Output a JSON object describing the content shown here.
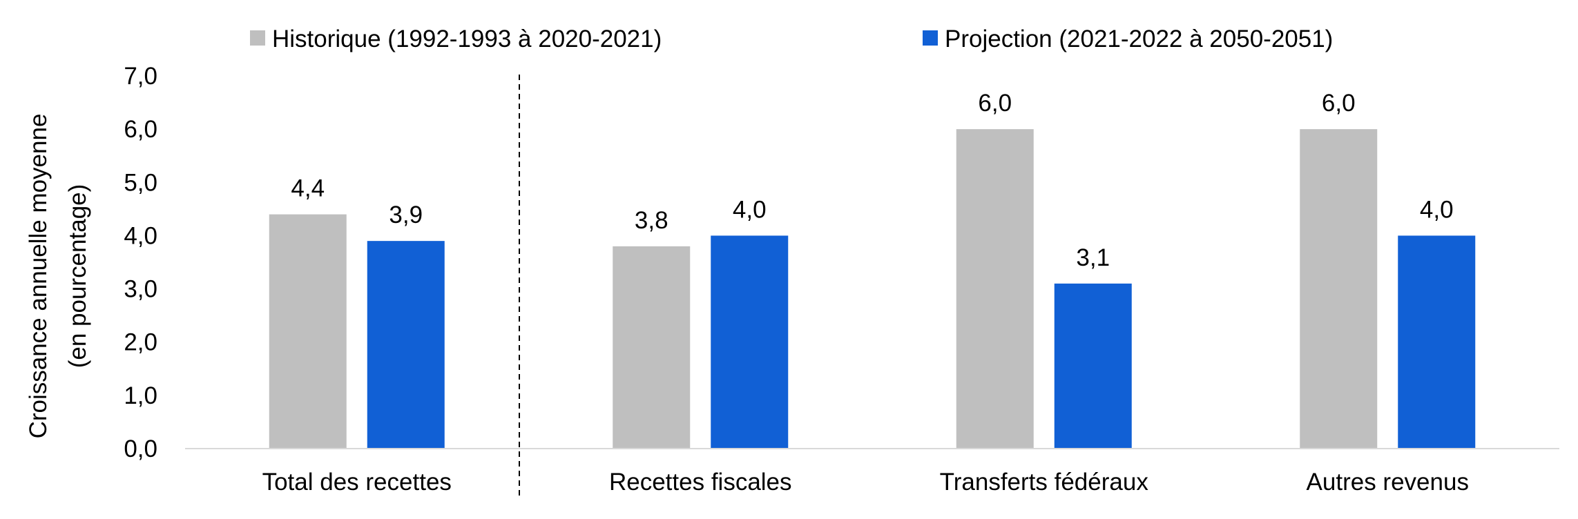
{
  "chart_data": {
    "type": "bar",
    "categories": [
      "Total des recettes",
      "Recettes fiscales",
      "Transferts fédéraux",
      "Autres revenus"
    ],
    "series": [
      {
        "name": "Historique (1992-1993 à 2020-2021)",
        "color": "#bfbfbf",
        "values": [
          4.4,
          3.8,
          6.0,
          6.0
        ],
        "labels": [
          "4,4",
          "3,8",
          "6,0",
          "6,0"
        ]
      },
      {
        "name": "Projection (2021-2022 à 2050-2051)",
        "color": "#1160d5",
        "values": [
          3.9,
          4.0,
          3.1,
          4.0
        ],
        "labels": [
          "3,9",
          "4,0",
          "3,1",
          "4,0"
        ]
      }
    ],
    "ylabel_lines": [
      "Croissance annuelle moyenne",
      "(en pourcentage)"
    ],
    "ylim": [
      0,
      7
    ],
    "yticks": [
      0,
      1,
      2,
      3,
      4,
      5,
      6,
      7
    ],
    "ytick_labels": [
      "0,0",
      "1,0",
      "2,0",
      "3,0",
      "4,0",
      "5,0",
      "6,0",
      "7,0"
    ],
    "grid": false,
    "legend_position": "top",
    "separator": "dashed line after first category"
  }
}
